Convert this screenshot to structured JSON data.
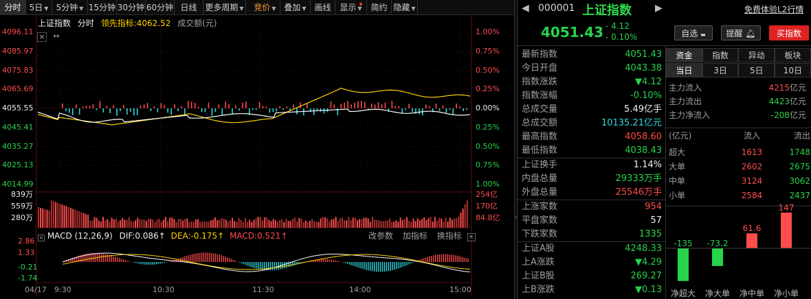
{
  "toolbar": {
    "items": [
      {
        "label": "分时",
        "active": true,
        "caret": false
      },
      {
        "label": "5日",
        "caret": true
      },
      {
        "label": "5分钟",
        "caret": true
      },
      {
        "label": "15分钟",
        "caret": false
      },
      {
        "label": "30分钟",
        "caret": false
      },
      {
        "label": "60分钟",
        "caret": false
      },
      {
        "label": "日线",
        "caret": false
      },
      {
        "label": "更多周期",
        "caret": true
      },
      {
        "label": "竞价",
        "caret": true,
        "highlight": true
      },
      {
        "label": "叠加",
        "caret": true
      },
      {
        "label": "画线",
        "caret": false
      },
      {
        "label": "显示",
        "caret": true,
        "dot": true
      },
      {
        "label": "简约",
        "caret": false
      },
      {
        "label": "隐藏",
        "caret": true
      }
    ]
  },
  "chart": {
    "legend": {
      "name": "上证指数",
      "mode": "分时",
      "lead_label": "领先指标:",
      "lead_value": "4062.52",
      "amount_label": "成交额(元)"
    },
    "price_levels": [
      "4096.11",
      "4085.97",
      "4075.83",
      "4065.69",
      "4055.55",
      "4045.41",
      "4035.27",
      "4025.13",
      "4014.99"
    ],
    "pct_levels": [
      "1.00%",
      "0.75%",
      "0.50%",
      "0.25%",
      "0.00%",
      "0.25%",
      "0.50%",
      "0.75%",
      "1.00%"
    ],
    "vol_left": [
      "839万",
      "559万",
      "280万"
    ],
    "vol_right": [
      "254亿",
      "170亿",
      "84.8亿"
    ],
    "macd": {
      "label": "MACD (12,26,9)",
      "dif": "DIF:0.086↑",
      "dea": "DEA:-0.175↑",
      "macd": "MACD:0.521↑",
      "params": "改参数",
      "add": "加指标",
      "switch": "换指标"
    },
    "macd_levels": [
      "2.86",
      "1.33",
      "-0.21",
      "-1.74"
    ],
    "time_labels": [
      "04/17",
      "9:30",
      "10:30",
      "11:30",
      "14:00",
      "15:00"
    ],
    "x_icon": "×",
    "move_icon": "↔",
    "colors": {
      "price": "#ffffff",
      "lead": "#ffd400",
      "up": "#ff4d4d",
      "down": "#2fd9e0"
    }
  },
  "quote": {
    "code": "000001",
    "name": "上证指数",
    "trial": "免费体验L2行情",
    "price": "4051.43",
    "change": "- 4.12",
    "pct": "- 0.10%",
    "watch_btn": "自选",
    "alert_btn": "提醒",
    "buy_btn": "买指数",
    "rows": [
      {
        "label": "最新指数",
        "value": "4051.43",
        "cls": "green"
      },
      {
        "label": "今日开盘",
        "value": "4043.38",
        "cls": "green"
      },
      {
        "label": "指数涨跌",
        "value": "▼4.12",
        "cls": "green"
      },
      {
        "label": "指数涨幅",
        "value": "-0.10%",
        "cls": "green"
      },
      {
        "label": "总成交量",
        "value": "5.49亿手",
        "cls": "white"
      },
      {
        "label": "总成交额",
        "value": "10135.21亿元",
        "cls": "cyan"
      },
      {
        "label": "最高指数",
        "value": "4058.60",
        "cls": "red"
      },
      {
        "label": "最低指数",
        "value": "4038.43",
        "cls": "green"
      },
      {
        "label": "上证换手",
        "value": "1.14%",
        "cls": "white"
      },
      {
        "label": "内盘总量",
        "value": "29333万手",
        "cls": "green"
      },
      {
        "label": "外盘总量",
        "value": "25546万手",
        "cls": "red"
      },
      {
        "label": "上涨家数",
        "value": "954",
        "cls": "red"
      },
      {
        "label": "平盘家数",
        "value": "57",
        "cls": "white"
      },
      {
        "label": "下跌家数",
        "value": "1335",
        "cls": "green"
      },
      {
        "label": "上证A股",
        "value": "4248.33",
        "cls": "green"
      },
      {
        "label": "上A涨跌",
        "value": "▼4.29",
        "cls": "green"
      },
      {
        "label": "上证B股",
        "value": "269.27",
        "cls": "green"
      },
      {
        "label": "上B涨跌",
        "value": "▼0.13",
        "cls": "green"
      }
    ]
  },
  "fund": {
    "tabs": [
      "资金",
      "指数",
      "异动",
      "板块"
    ],
    "periods": [
      "当日",
      "3日",
      "5日",
      "10日"
    ],
    "flows": [
      {
        "label": "主力流入",
        "value": "4215",
        "unit": "亿元",
        "cls": "red"
      },
      {
        "label": "主力流出",
        "value": "4423",
        "unit": "亿元",
        "cls": "green"
      },
      {
        "label": "主力净流入",
        "value": "-208",
        "unit": "亿元",
        "cls": "green"
      }
    ],
    "table_head": [
      "(亿元)",
      "流入",
      "流出"
    ],
    "table": [
      {
        "label": "超大",
        "in": "1613",
        "out": "1748"
      },
      {
        "label": "大单",
        "in": "2602",
        "out": "2675"
      },
      {
        "label": "中单",
        "in": "3124",
        "out": "3062"
      },
      {
        "label": "小单",
        "in": "2584",
        "out": "2437"
      }
    ],
    "net": [
      {
        "label": "净超大",
        "value": -135,
        "text": "-135"
      },
      {
        "label": "净大单",
        "value": -73.2,
        "text": "-73.2"
      },
      {
        "label": "净中单",
        "value": 61.6,
        "text": "61.6"
      },
      {
        "label": "净小单",
        "value": 147,
        "text": "147"
      }
    ]
  }
}
